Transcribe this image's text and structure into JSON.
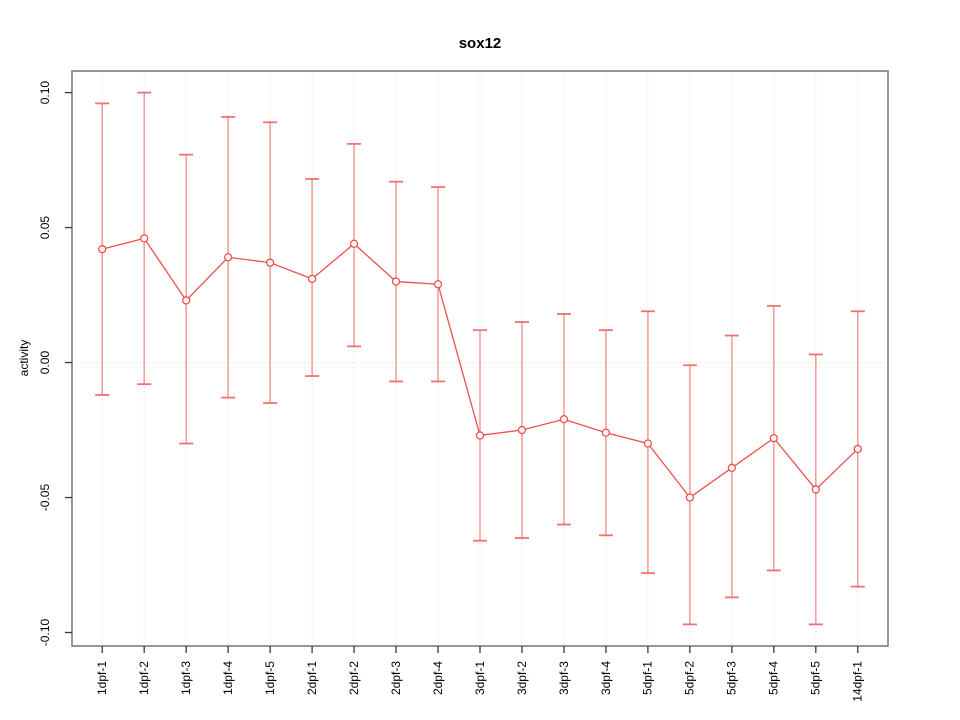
{
  "chart_data": {
    "type": "line",
    "title": "sox12",
    "ylabel": "activity",
    "xlabel": "",
    "legend": "none",
    "categories": [
      "1dpf-1",
      "1dpf-2",
      "1dpf-3",
      "1dpf-4",
      "1dpf-5",
      "2dpf-1",
      "2dpf-2",
      "2dpf-3",
      "2dpf-4",
      "3dpf-1",
      "3dpf-2",
      "3dpf-3",
      "3dpf-4",
      "5dpf-1",
      "5dpf-2",
      "5dpf-3",
      "5dpf-4",
      "5dpf-5",
      "14dpf-1"
    ],
    "series": [
      {
        "name": "activity",
        "values": [
          0.042,
          0.046,
          0.023,
          0.039,
          0.037,
          0.031,
          0.044,
          0.03,
          0.029,
          -0.027,
          -0.025,
          -0.021,
          -0.026,
          -0.03,
          -0.05,
          -0.039,
          -0.028,
          -0.047,
          -0.032
        ],
        "upper": [
          0.096,
          0.1,
          0.077,
          0.091,
          0.089,
          0.068,
          0.081,
          0.067,
          0.065,
          0.012,
          0.015,
          0.018,
          0.012,
          0.019,
          -0.001,
          0.01,
          0.021,
          0.003,
          0.019
        ],
        "lower": [
          -0.012,
          -0.008,
          -0.03,
          -0.013,
          -0.015,
          -0.005,
          0.006,
          -0.007,
          -0.007,
          -0.066,
          -0.065,
          -0.06,
          -0.064,
          -0.078,
          -0.097,
          -0.087,
          -0.077,
          -0.097,
          -0.083
        ]
      }
    ],
    "ytick_values": [
      0.1,
      0.05,
      0.0,
      -0.05,
      -0.1
    ],
    "ytick_labels": [
      "0.10",
      "0.05",
      "0.00",
      "-0.05",
      "-0.10"
    ],
    "ylim": [
      -0.105,
      0.108
    ],
    "xlim": [
      0.28,
      19.72
    ],
    "grid": {
      "vertical_gridlines": true,
      "zero_line": true,
      "style": "dotted"
    },
    "colors": {
      "series": "#ef4f4c",
      "error_bar": "#ef5a57",
      "point_fill": "#ffffff",
      "box": "#7c7c7c",
      "grid": "#d9d9d9",
      "tick": "#3a3a3a",
      "text": "#000000",
      "background": "#ffffff"
    }
  }
}
